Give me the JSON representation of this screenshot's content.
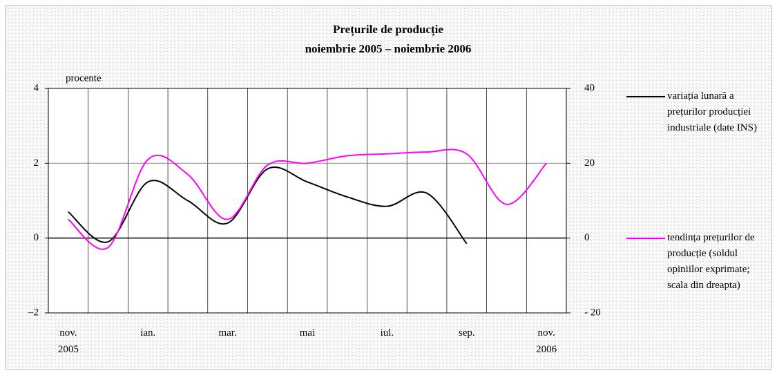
{
  "chart_data": {
    "type": "line",
    "title": "Prețurile de producție",
    "subtitle": "noiembrie 2005 – noiembrie 2006",
    "y_label": "procente",
    "categories": [
      "nov.\n2005",
      null,
      "ian.",
      null,
      "mar.",
      null,
      "mai",
      null,
      "iul.",
      null,
      "sep.",
      null,
      "nov.\n2006"
    ],
    "series": [
      {
        "name": "variația lunară a prețurilor producției industriale (date INS)",
        "color": "#000000",
        "axis": "y",
        "values": [
          0.7,
          -0.1,
          1.5,
          1.0,
          0.4,
          1.85,
          1.5,
          1.1,
          0.85,
          1.2,
          -0.15,
          null,
          null
        ]
      },
      {
        "name": "tendința prețurilor de producție (soldul opiniilor exprimate; scala din dreapta)",
        "color": "#ff00ff",
        "axis": "y2",
        "values": [
          5,
          -2.5,
          21,
          17,
          5,
          19.5,
          20,
          22,
          22.5,
          23,
          22.5,
          9,
          20
        ]
      }
    ],
    "ylim": [
      -2,
      4
    ],
    "yticks": [
      {
        "value": -2,
        "label": "–2"
      },
      0,
      2,
      4
    ],
    "y2lim": [
      -20,
      40
    ],
    "y2ticks": [
      {
        "value": -20,
        "label": "- 20"
      },
      0,
      20,
      40
    ],
    "grid": true,
    "legend": "right"
  }
}
